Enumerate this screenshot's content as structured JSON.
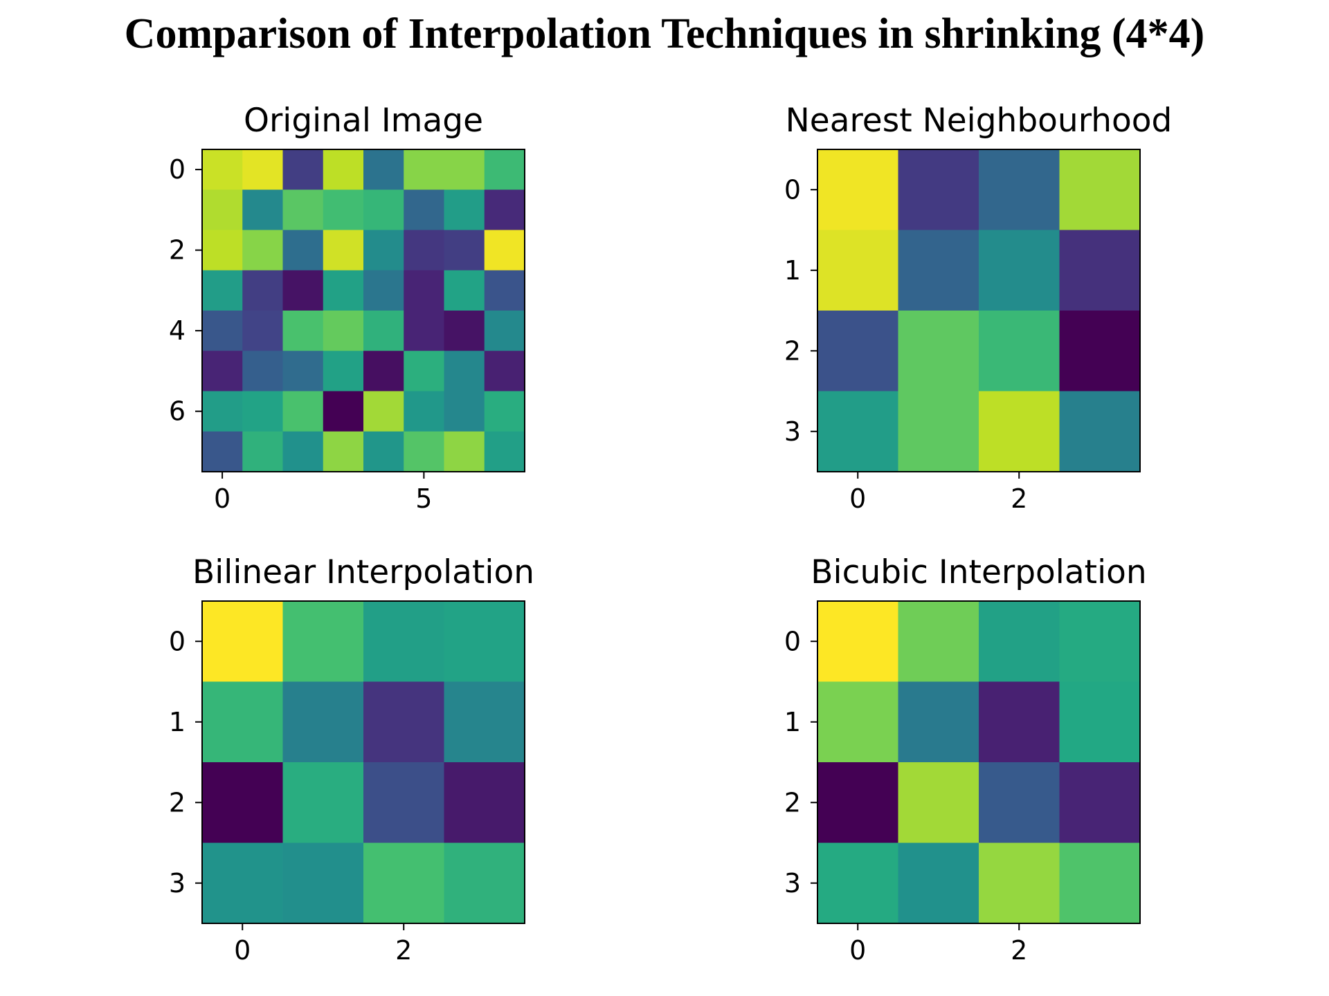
{
  "figure_title": "Comparison of Interpolation Techniques in shrinking (4*4)",
  "colormap": "viridis",
  "chart_data": [
    {
      "type": "heatmap",
      "title": "Original Image",
      "xticks": [
        0,
        5
      ],
      "yticks": [
        0,
        2,
        4,
        6
      ],
      "values": [
        [
          0.92,
          0.96,
          0.18,
          0.9,
          0.38,
          0.82,
          0.82,
          0.68
        ],
        [
          0.88,
          0.47,
          0.74,
          0.69,
          0.66,
          0.33,
          0.55,
          0.12
        ],
        [
          0.9,
          0.82,
          0.36,
          0.93,
          0.48,
          0.16,
          0.18,
          0.98
        ],
        [
          0.55,
          0.18,
          0.05,
          0.57,
          0.39,
          0.1,
          0.58,
          0.26
        ],
        [
          0.27,
          0.2,
          0.71,
          0.76,
          0.64,
          0.1,
          0.05,
          0.47
        ],
        [
          0.1,
          0.3,
          0.35,
          0.57,
          0.04,
          0.63,
          0.46,
          0.09
        ],
        [
          0.55,
          0.58,
          0.71,
          0.0,
          0.86,
          0.53,
          0.46,
          0.62
        ],
        [
          0.27,
          0.64,
          0.5,
          0.83,
          0.52,
          0.73,
          0.83,
          0.56
        ]
      ]
    },
    {
      "type": "heatmap",
      "title": "Nearest Neighbourhood",
      "xticks": [
        0,
        2
      ],
      "yticks": [
        0,
        1,
        2,
        3
      ],
      "values": [
        [
          0.98,
          0.17,
          0.33,
          0.86
        ],
        [
          0.95,
          0.32,
          0.48,
          0.14
        ],
        [
          0.25,
          0.75,
          0.67,
          0.0
        ],
        [
          0.55,
          0.75,
          0.9,
          0.43
        ]
      ]
    },
    {
      "type": "heatmap",
      "title": "Bilinear Interpolation",
      "xticks": [
        0,
        2
      ],
      "yticks": [
        0,
        1,
        2,
        3
      ],
      "values": [
        [
          1.0,
          0.7,
          0.56,
          0.58
        ],
        [
          0.66,
          0.43,
          0.15,
          0.45
        ],
        [
          0.0,
          0.62,
          0.24,
          0.07
        ],
        [
          0.51,
          0.49,
          0.7,
          0.64
        ]
      ]
    },
    {
      "type": "heatmap",
      "title": "Bicubic Interpolation",
      "xticks": [
        0,
        2
      ],
      "yticks": [
        0,
        1,
        2,
        3
      ],
      "values": [
        [
          1.0,
          0.78,
          0.57,
          0.61
        ],
        [
          0.8,
          0.41,
          0.09,
          0.6
        ],
        [
          0.0,
          0.86,
          0.28,
          0.1
        ],
        [
          0.61,
          0.5,
          0.84,
          0.72
        ]
      ]
    }
  ]
}
